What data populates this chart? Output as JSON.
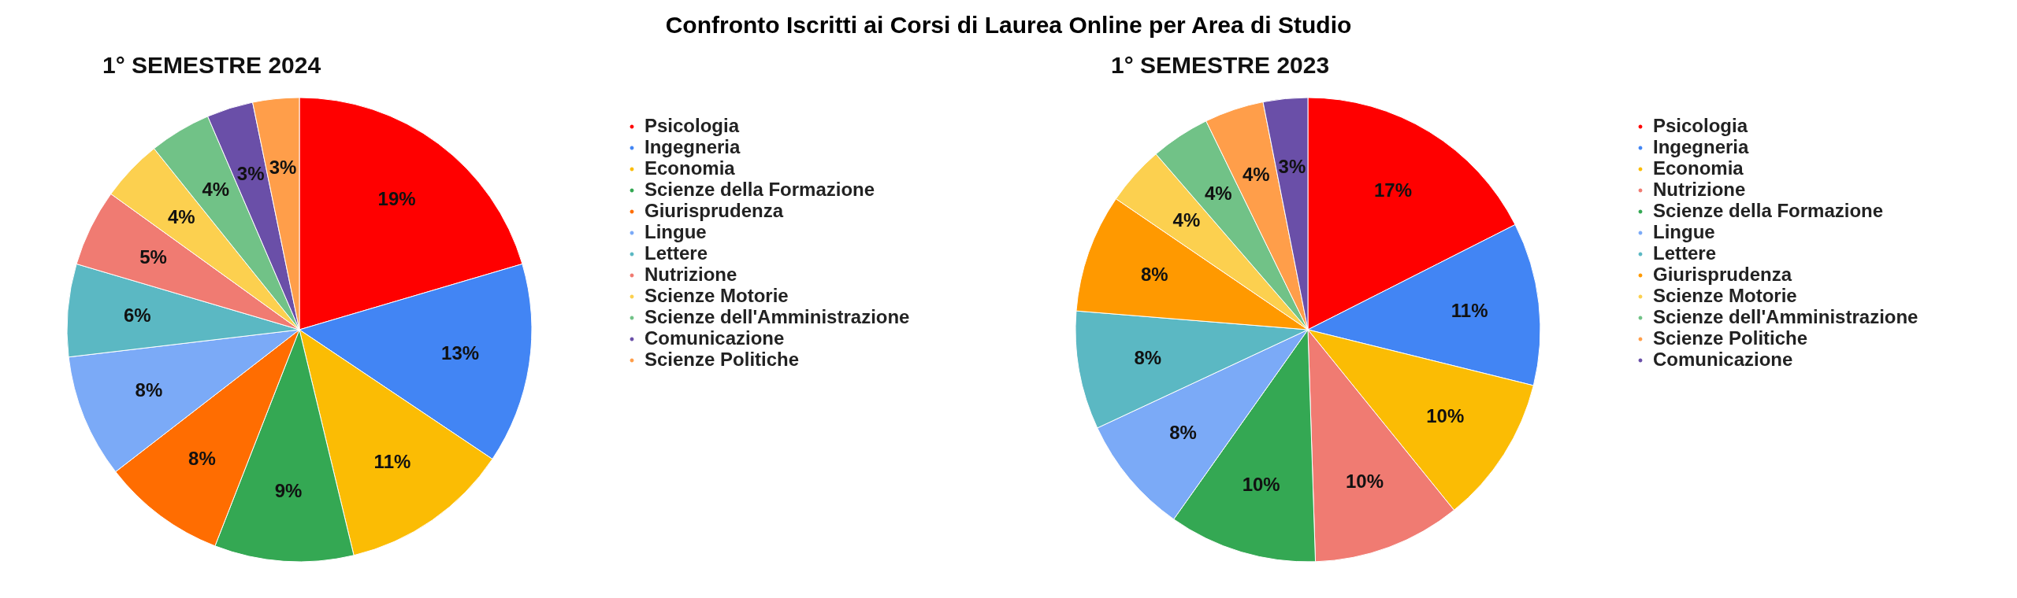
{
  "chart_data": [
    {
      "type": "other",
      "title": "Confronto Iscritti ai Corsi di Laurea Online per Area di Studio"
    },
    {
      "type": "pie",
      "title": "1° SEMESTRE 2024",
      "legend": "right",
      "categories": [
        "Psicologia",
        "Ingegneria",
        "Economia",
        "Scienze della Formazione",
        "Giurisprudenza",
        "Lingue",
        "Lettere",
        "Nutrizione",
        "Scienze Motorie",
        "Scienze dell'Amministrazione",
        "Comunicazione",
        "Scienze Politiche"
      ],
      "values": [
        19,
        13,
        11,
        9,
        8,
        8,
        6,
        5,
        4,
        4,
        3,
        3
      ],
      "value_labels": [
        "19%",
        "13%",
        "11%",
        "9%",
        "8%",
        "8%",
        "6%",
        "5%",
        "4%",
        "4%",
        "3%",
        "3%"
      ],
      "colors": [
        "#ff0000",
        "#4285f4",
        "#fbbc04",
        "#34a853",
        "#ff6d01",
        "#7baaf7",
        "#5bb8c3",
        "#f07b72",
        "#fcd04f",
        "#71c287",
        "#6a4fa8",
        "#ff9e4a"
      ]
    },
    {
      "type": "pie",
      "title": "1° SEMESTRE 2023",
      "legend": "right",
      "categories": [
        "Psicologia",
        "Ingegneria",
        "Economia",
        "Nutrizione",
        "Scienze della Formazione",
        "Lingue",
        "Lettere",
        "Giurisprudenza",
        "Scienze Motorie",
        "Scienze dell'Amministrazione",
        "Scienze Politiche",
        "Comunicazione"
      ],
      "values": [
        17,
        11,
        10,
        10,
        10,
        8,
        8,
        8,
        4,
        4,
        4,
        3
      ],
      "value_labels": [
        "17%",
        "11%",
        "10%",
        "10%",
        "10%",
        "8%",
        "8%",
        "8%",
        "4%",
        "4%",
        "4%",
        "3%"
      ],
      "colors": [
        "#ff0000",
        "#4285f4",
        "#fbbc04",
        "#f07b72",
        "#34a853",
        "#7baaf7",
        "#5bb8c3",
        "#ff9900",
        "#fcd04f",
        "#71c287",
        "#ff9e4a",
        "#6a4fa8"
      ]
    }
  ]
}
